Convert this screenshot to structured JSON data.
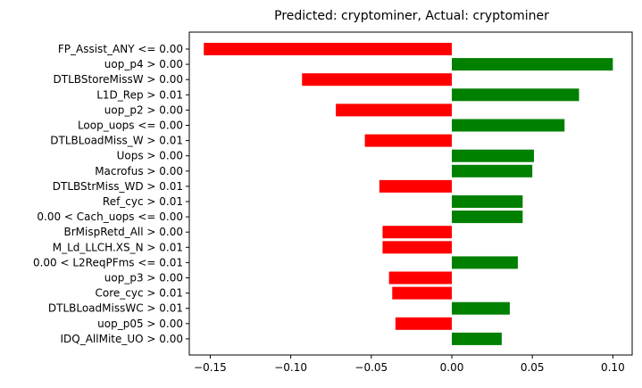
{
  "chart_data": {
    "type": "bar",
    "orientation": "horizontal",
    "title": "Predicted: cryptominer, Actual: cryptominer",
    "xlabel": "",
    "ylabel": "",
    "xlim": [
      -0.163,
      0.112
    ],
    "xticks": [
      -0.15,
      -0.1,
      -0.05,
      0.0,
      0.05,
      0.1
    ],
    "xtick_labels": [
      "−0.15",
      "−0.10",
      "−0.05",
      "0.00",
      "0.05",
      "0.10"
    ],
    "grid": false,
    "positive_color": "#008000",
    "negative_color": "#ff0000",
    "categories": [
      "FP_Assist_ANY <= 0.00",
      "uop_p4 > 0.00",
      "DTLBStoreMissW > 0.00",
      "L1D_Rep > 0.01",
      "uop_p2 > 0.00",
      "Loop_uops <= 0.00",
      "DTLBLoadMiss_W > 0.01",
      "Uops > 0.00",
      "Macrofus > 0.00",
      "DTLBStrMiss_WD > 0.01",
      "Ref_cyc > 0.01",
      "0.00 < Cach_uops <= 0.00",
      "BrMispRetd_All > 0.00",
      "M_Ld_LLCH.XS_N > 0.01",
      "0.00 < L2ReqPFms <= 0.01",
      "uop_p3 > 0.00",
      "Core_cyc > 0.01",
      "DTLBLoadMissWC > 0.01",
      "uop_p05 > 0.00",
      "IDQ_AllMite_UO > 0.00"
    ],
    "values": [
      -0.154,
      0.1,
      -0.093,
      0.079,
      -0.072,
      0.07,
      -0.054,
      0.051,
      0.05,
      -0.045,
      0.044,
      0.044,
      -0.043,
      -0.043,
      0.041,
      -0.039,
      -0.037,
      0.036,
      -0.035,
      0.031
    ]
  }
}
